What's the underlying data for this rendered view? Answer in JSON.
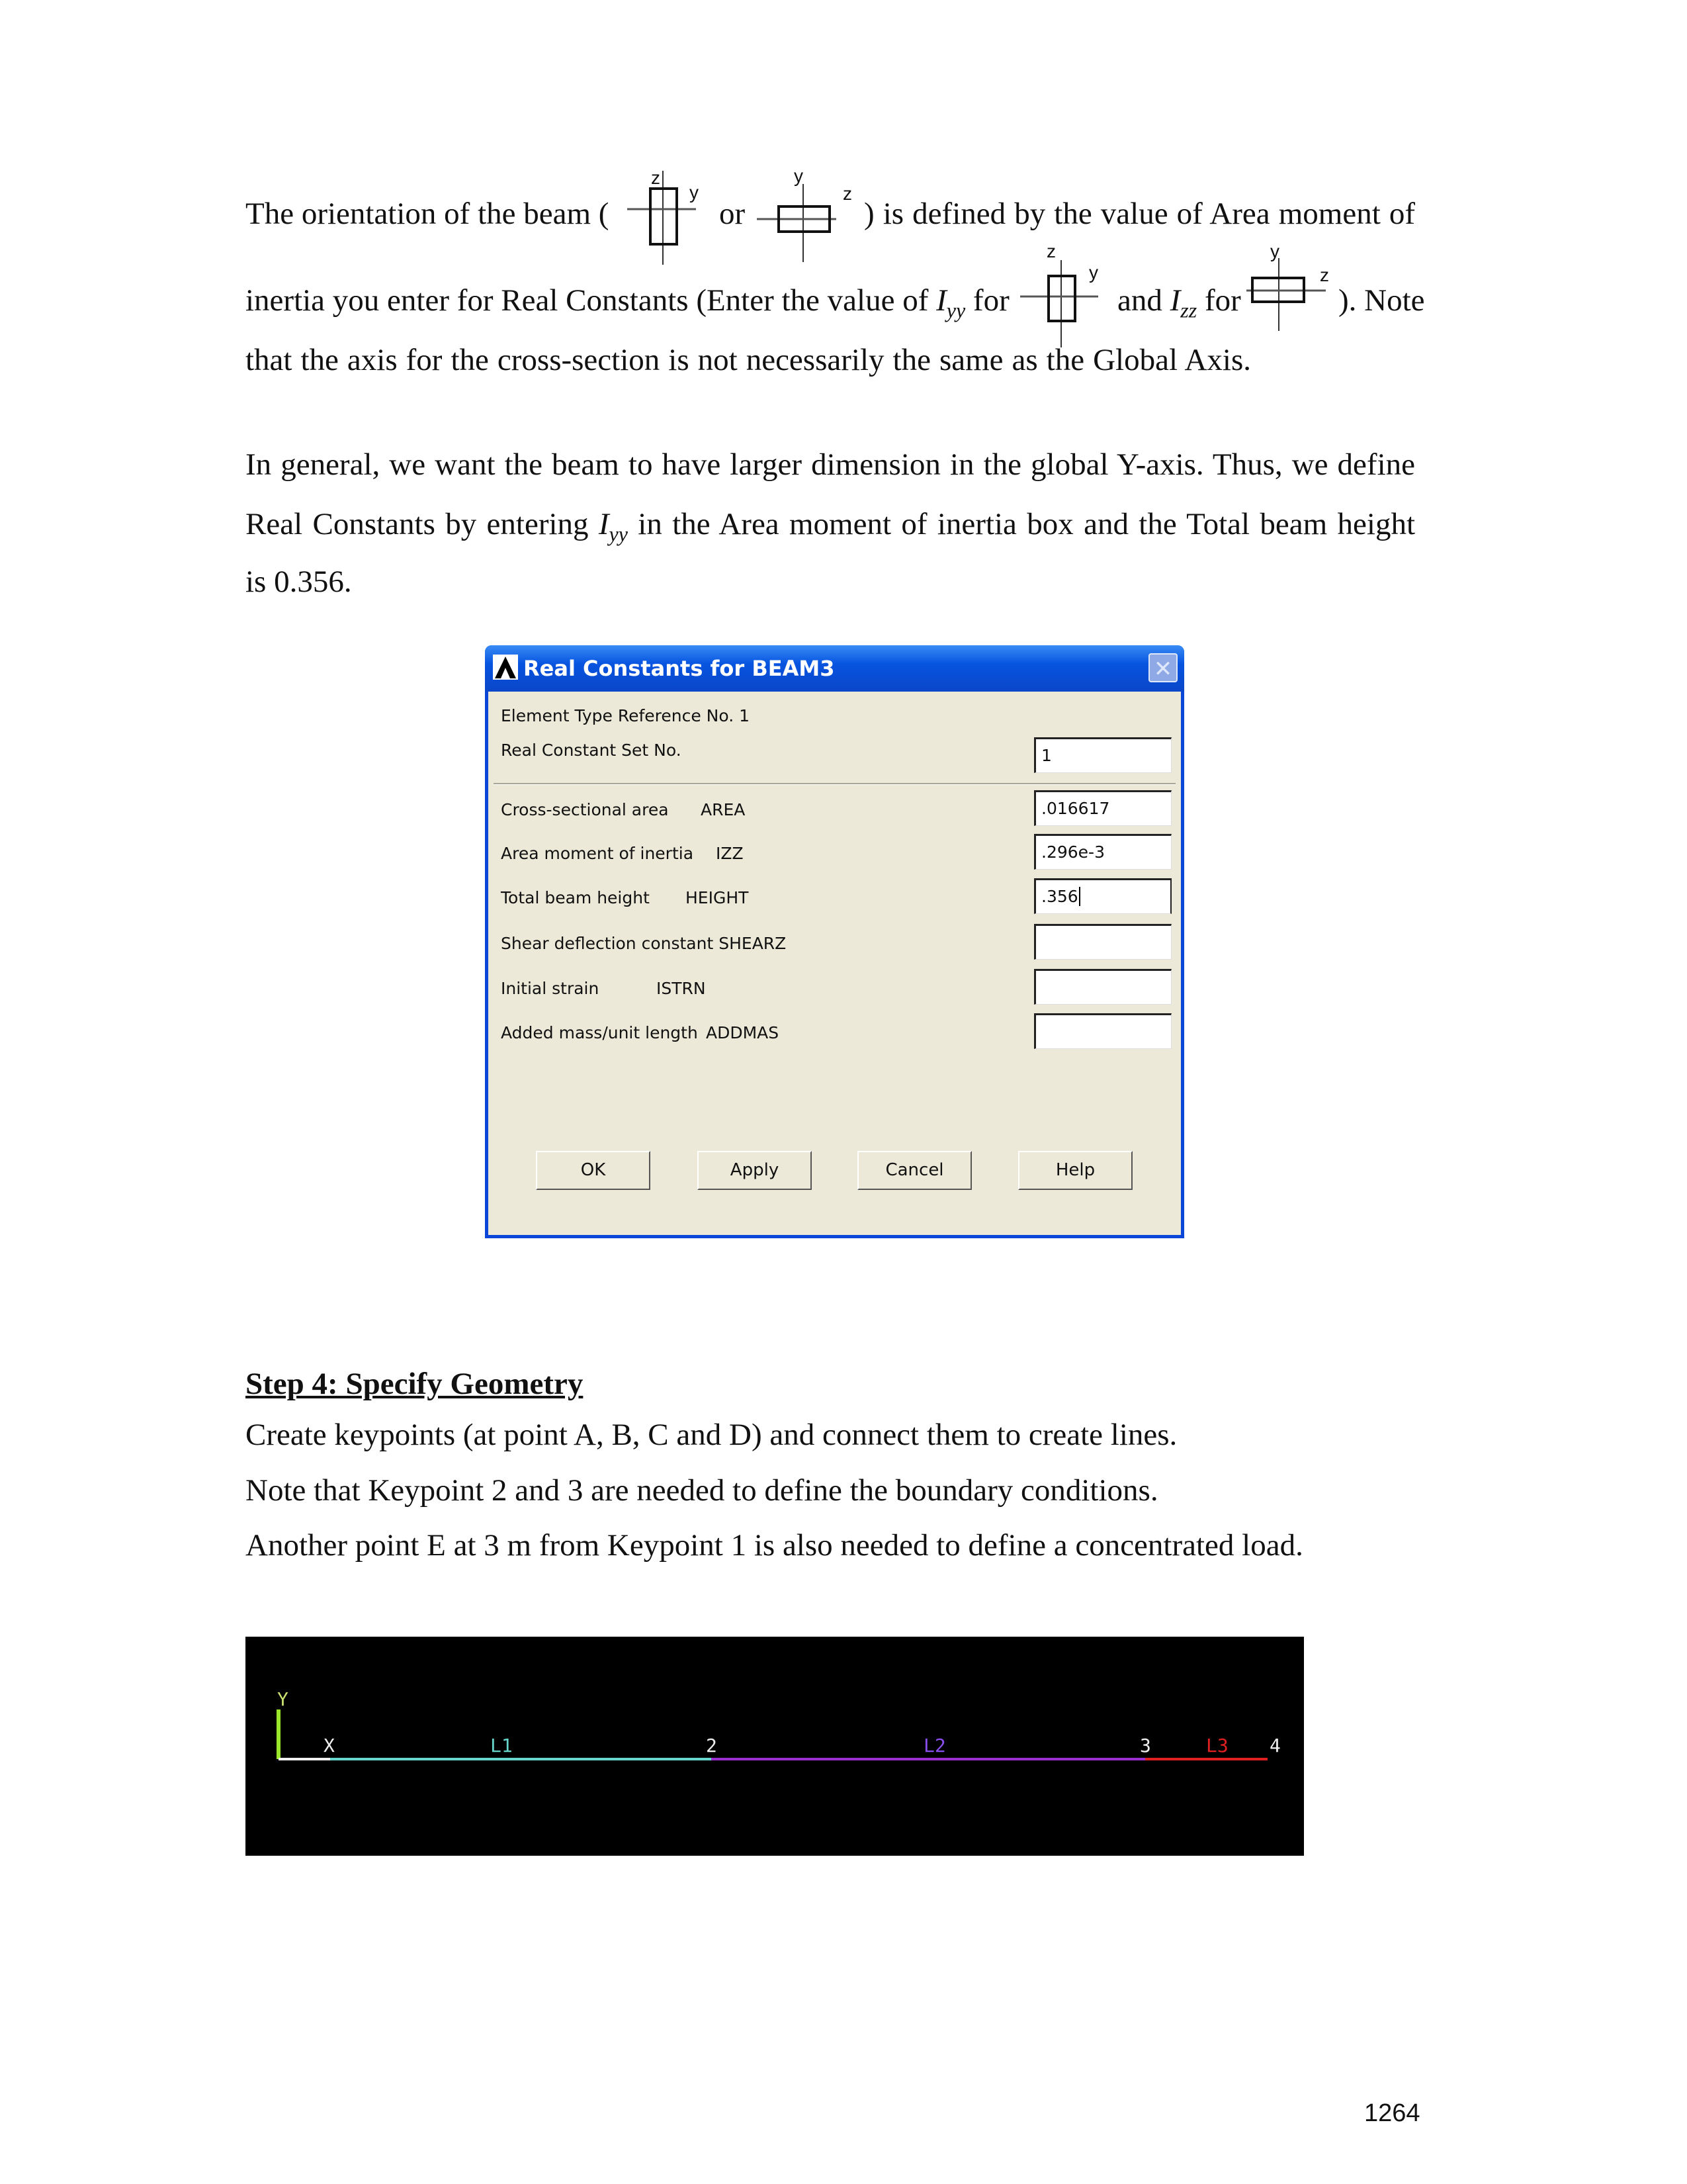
{
  "para1": {
    "l1a": "The orientation of the beam (",
    "l1b": "or",
    "l1c": ") is defined by the value of Area moment of",
    "l2a": "inertia you enter for Real Constants (Enter the value of",
    "iyy": "I",
    "iyy_sub": "yy",
    "for1": "for",
    "and": "and",
    "izz": "I",
    "izz_sub": "zz",
    "for2": "for",
    "l2c": "). Note",
    "l3": "that the axis for the cross-section is not necessarily the same as the Global Axis."
  },
  "icons": {
    "z": "z",
    "y": "y"
  },
  "para2": {
    "l1": "In general, we want the beam to have larger dimension in the global Y-axis. Thus, we define",
    "l2a": "Real Constants by entering",
    "l2b": "in the Area moment of inertia box and the Total beam height",
    "l3": "is 0.356."
  },
  "dialog": {
    "title": "Real Constants for BEAM3",
    "element_type": "Element Type Reference No. 1",
    "set_label": "Real Constant Set No.",
    "set_value": "1",
    "fields": [
      {
        "label": "Cross-sectional area",
        "code": "AREA",
        "value": ".016617"
      },
      {
        "label": "Area moment of inertia",
        "code": "IZZ",
        "value": ".296e-3"
      },
      {
        "label": "Total beam height",
        "code": "HEIGHT",
        "value": ".356"
      },
      {
        "label": "Shear deflection constant",
        "code": "SHEARZ",
        "value": ""
      },
      {
        "label": "Initial strain",
        "code": "ISTRN",
        "value": ""
      },
      {
        "label": "Added mass/unit length",
        "code": "ADDMAS",
        "value": ""
      }
    ],
    "buttons": {
      "ok": "OK",
      "apply": "Apply",
      "cancel": "Cancel",
      "help": "Help"
    }
  },
  "step4": {
    "heading": "Step 4: Specify Geometry",
    "l1": "Create keypoints (at point A, B, C and D) and connect them to create lines.",
    "l2": "Note that Keypoint 2 and 3 are needed to define the boundary conditions.",
    "l3": "Another point E at 3 m from Keypoint 1 is also needed to define a concentrated load."
  },
  "graphics": {
    "axis_y": "Y",
    "axis_x": "X",
    "l1": "L1",
    "kp2": "2",
    "l2": "L2",
    "kp3": "3",
    "l3": "L3",
    "kp4": "4",
    "colors": {
      "l1": "#66d6cc",
      "l2": "#9a2fd0",
      "l3": "#e02020",
      "axis": "#9ae62a"
    }
  },
  "page_number": "1264"
}
